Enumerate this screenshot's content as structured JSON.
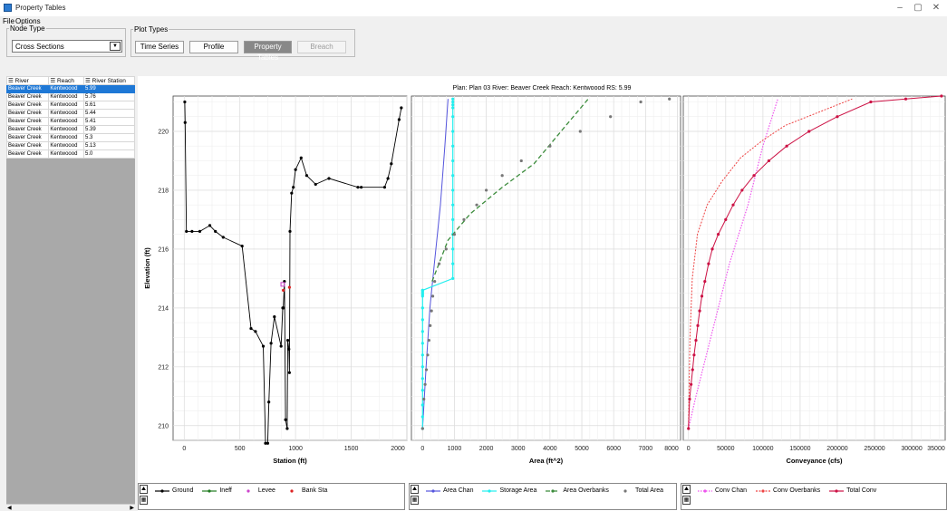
{
  "window": {
    "title": "Property Tables"
  },
  "menu": {
    "file": "File",
    "options": "Options"
  },
  "node_type": {
    "label": "Node Type",
    "selected": "Cross Sections"
  },
  "plot_types": {
    "label": "Plot Types",
    "time_series": "Time Series",
    "profile": "Profile",
    "property_tables": "Property Tables",
    "breach": "Breach"
  },
  "table": {
    "headers": [
      "River",
      "Reach",
      "River Station"
    ],
    "rows": [
      [
        "Beaver Creek",
        "Kentwoood",
        "5.99"
      ],
      [
        "Beaver Creek",
        "Kentwoood",
        "5.76"
      ],
      [
        "Beaver Creek",
        "Kentwoood",
        "5.61"
      ],
      [
        "Beaver Creek",
        "Kentwoood",
        "5.44"
      ],
      [
        "Beaver Creek",
        "Kentwoood",
        "5.41"
      ],
      [
        "Beaver Creek",
        "Kentwoood",
        "5.39"
      ],
      [
        "Beaver Creek",
        "Kentwoood",
        "5.3"
      ],
      [
        "Beaver Creek",
        "Kentwoood",
        "5.13"
      ],
      [
        "Beaver Creek",
        "Kentwoood",
        "5.0"
      ]
    ],
    "selected_index": 0
  },
  "plot_title": "Plan: Plan 03    River: Beaver Creek    Reach: Kentwoood    RS: 5.99",
  "colors": {
    "ground": "#000000",
    "ineff": "#1f7a1f",
    "levee": "#cc44cc",
    "bank": "#dd2222",
    "area_chan": "#5555dd",
    "storage": "#22eeee",
    "overbanks": "#3c8c3c",
    "total_area": "#777777",
    "conv_chan": "#ee55ee",
    "conv_over": "#ee4444",
    "total_conv": "#cc1144"
  },
  "chart_data": [
    {
      "type": "line",
      "xlabel": "Station (ft)",
      "ylabel": "Elevation (ft)",
      "xticks": [
        "0",
        "500",
        "1000",
        "1500",
        "2000"
      ],
      "yticks": [
        "210",
        "212",
        "214",
        "216",
        "218",
        "220"
      ],
      "xlim": [
        -100,
        2000
      ],
      "ylim": [
        209.5,
        221.2
      ],
      "legend": [
        "Ground",
        "Ineff",
        "Levee",
        "Bank Sta"
      ],
      "series": [
        {
          "name": "Ground",
          "x": [
            5,
            8,
            20,
            70,
            140,
            230,
            280,
            350,
            520,
            600,
            640,
            710,
            730,
            750,
            760,
            780,
            810,
            870,
            885,
            890,
            900,
            910,
            925,
            930,
            940,
            945,
            950,
            965,
            980,
            1000,
            1050,
            1100,
            1180,
            1300,
            1560,
            1590,
            1800,
            1830,
            1860,
            1930,
            1950
          ],
          "y": [
            221.0,
            220.3,
            216.6,
            216.6,
            216.6,
            216.8,
            216.6,
            216.4,
            216.1,
            213.3,
            213.2,
            212.7,
            209.4,
            209.4,
            210.8,
            212.8,
            213.7,
            212.7,
            214.0,
            214.0,
            214.9,
            210.2,
            209.9,
            212.9,
            212.6,
            211.8,
            216.6,
            217.9,
            218.1,
            218.7,
            219.1,
            218.5,
            218.2,
            218.4,
            218.1,
            218.1,
            218.1,
            218.4,
            218.9,
            220.4,
            220.8
          ]
        },
        {
          "name": "Levee",
          "x": [
            885
          ],
          "y": [
            214.8
          ]
        },
        {
          "name": "Bank Sta",
          "x": [
            890,
            945
          ],
          "y": [
            214.6,
            214.7
          ]
        }
      ]
    },
    {
      "type": "line",
      "xlabel": "Area (ft^2)",
      "ylabel": "",
      "xticks": [
        "0",
        "1000",
        "2000",
        "3000",
        "4000",
        "5000",
        "6000",
        "7000",
        "8000"
      ],
      "xlim": [
        -350,
        8100
      ],
      "ylim": [
        209.5,
        221.2
      ],
      "legend": [
        "Area Chan",
        "Storage Area",
        "Area Overbanks",
        "Total Area"
      ],
      "series": [
        {
          "name": "Area Chan",
          "x": [
            0,
            110,
            230,
            370,
            560,
            700,
            800
          ],
          "y": [
            209.9,
            212,
            214,
            215.5,
            217.5,
            219.5,
            221.1
          ]
        },
        {
          "name": "Storage Area",
          "x": [
            0,
            0,
            0,
            0,
            0,
            0,
            0,
            0,
            0,
            0,
            0,
            0,
            0,
            0,
            0,
            0,
            0,
            950,
            950,
            950,
            950,
            950,
            950,
            950,
            950,
            950,
            950,
            950,
            950,
            950,
            950,
            950,
            950
          ],
          "y": [
            209.9,
            210.3,
            210.7,
            211.2,
            211.6,
            212.0,
            212.4,
            212.8,
            213.2,
            213.6,
            214.0,
            214.4,
            214.45,
            214.5,
            214.55,
            214.6,
            214.6,
            215.0,
            215.5,
            216.0,
            216.5,
            217.0,
            217.5,
            218.0,
            218.5,
            219.0,
            219.5,
            220.0,
            220.5,
            220.8,
            220.9,
            221.0,
            221.1
          ]
        },
        {
          "name": "Area Overbanks",
          "x": [
            300,
            800,
            1500,
            2500,
            3500,
            4500,
            5200
          ],
          "y": [
            214.9,
            216.3,
            217.2,
            218.1,
            218.9,
            220.2,
            221.1
          ]
        },
        {
          "name": "Total Area",
          "x": [
            0,
            40,
            80,
            120,
            160,
            200,
            240,
            280,
            320,
            380,
            520,
            740,
            1000,
            1300,
            1700,
            2000,
            2500,
            3100,
            4000,
            4950,
            5900,
            6850,
            7750
          ],
          "y": [
            209.9,
            210.9,
            211.4,
            211.9,
            212.4,
            212.9,
            213.4,
            213.9,
            214.4,
            214.9,
            215.5,
            216.0,
            216.5,
            217.0,
            217.5,
            218.0,
            218.5,
            219.0,
            219.5,
            220.0,
            220.5,
            221.0,
            221.1
          ]
        }
      ]
    },
    {
      "type": "line",
      "xlabel": "Conveyance (cfs)",
      "ylabel": "",
      "xticks": [
        "0",
        "50000",
        "100000",
        "150000",
        "200000",
        "250000",
        "300000",
        "35000"
      ],
      "xlim": [
        -7000,
        345000
      ],
      "ylim": [
        209.5,
        221.2
      ],
      "legend": [
        "Conv Chan",
        "Conv Overbanks",
        "Total Conv"
      ],
      "series": [
        {
          "name": "Conv Chan",
          "x": [
            0,
            10000,
            30000,
            55000,
            80000,
            100000,
            120000
          ],
          "y": [
            209.9,
            211,
            213,
            215.5,
            217.5,
            219.5,
            221.1
          ]
        },
        {
          "name": "Conv Overbanks",
          "x": [
            0,
            2000,
            5000,
            12000,
            25000,
            45000,
            70000,
            100000,
            130000,
            170000,
            220000
          ],
          "y": [
            209.9,
            213,
            215,
            216.5,
            217.5,
            218.3,
            219.1,
            219.7,
            220.2,
            220.6,
            221.1
          ]
        },
        {
          "name": "Total Conv",
          "x": [
            0,
            1500,
            3500,
            5500,
            7500,
            10000,
            12500,
            15000,
            18000,
            22000,
            27000,
            32000,
            40000,
            50000,
            60000,
            72000,
            88000,
            108000,
            132000,
            162000,
            200000,
            245000,
            292000,
            340000
          ],
          "y": [
            209.9,
            210.9,
            211.4,
            211.9,
            212.4,
            212.9,
            213.4,
            213.9,
            214.4,
            214.9,
            215.5,
            216.0,
            216.5,
            217.0,
            217.5,
            218.0,
            218.5,
            219.0,
            219.5,
            220.0,
            220.5,
            221.0,
            221.1,
            221.2
          ]
        }
      ]
    }
  ]
}
